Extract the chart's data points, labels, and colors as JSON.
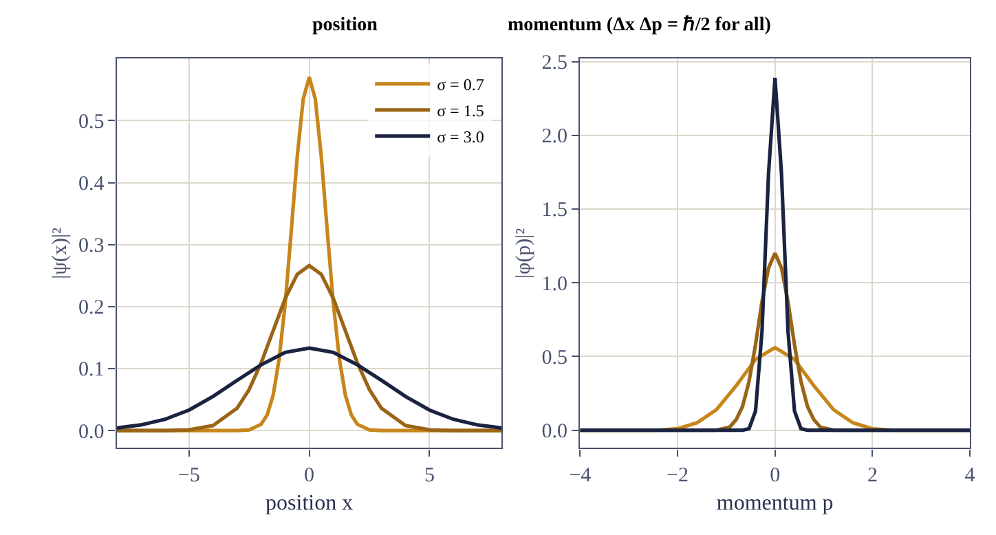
{
  "chart_data": [
    {
      "type": "line",
      "title": "position",
      "xlabel": "position x",
      "ylabel": "|ψ(x)|²",
      "xlim": [
        -8,
        8
      ],
      "ylim": [
        -0.028,
        0.6
      ],
      "xticks": [
        -5,
        0,
        5
      ],
      "yticks": [
        {
          "value": 0,
          "label": "0.0"
        },
        0.1,
        0.2,
        0.3,
        0.4,
        0.5
      ],
      "grid": true,
      "legend": "top right",
      "line_style": "solid",
      "marker": "none",
      "series": [
        {
          "name": "σ = 0.7",
          "color": "#c8861a",
          "x": [
            -8,
            -4,
            -3,
            -2.5,
            -2,
            -1.75,
            -1.5,
            -1.25,
            -1,
            -0.75,
            -0.5,
            -0.25,
            0,
            0.25,
            0.5,
            0.75,
            1,
            1.25,
            1.5,
            1.75,
            2,
            2.5,
            3,
            4,
            8
          ],
          "values": [
            0.0,
            0.0,
            0.0,
            0.001,
            0.01,
            0.025,
            0.057,
            0.116,
            0.205,
            0.321,
            0.442,
            0.535,
            0.57,
            0.535,
            0.442,
            0.321,
            0.205,
            0.116,
            0.057,
            0.025,
            0.01,
            0.001,
            0.0,
            0.0,
            0.0
          ]
        },
        {
          "name": "σ = 1.5",
          "color": "#9a6516",
          "x": [
            -8,
            -7,
            -6,
            -5,
            -4,
            -3,
            -2.5,
            -2,
            -1.5,
            -1,
            -0.5,
            0,
            0.5,
            1,
            1.5,
            2,
            2.5,
            3,
            4,
            5,
            6,
            7,
            8
          ],
          "values": [
            0.0,
            0.0,
            0.0,
            0.001,
            0.008,
            0.036,
            0.066,
            0.109,
            0.161,
            0.213,
            0.252,
            0.266,
            0.252,
            0.213,
            0.161,
            0.109,
            0.066,
            0.036,
            0.008,
            0.001,
            0.0,
            0.0,
            0.0
          ]
        },
        {
          "name": "σ = 3.0",
          "color": "#1a2340",
          "x": [
            -8,
            -7,
            -6,
            -5,
            -4,
            -3,
            -2,
            -1,
            0,
            1,
            2,
            3,
            4,
            5,
            6,
            7,
            8
          ],
          "values": [
            0.004,
            0.009,
            0.018,
            0.033,
            0.055,
            0.081,
            0.106,
            0.126,
            0.133,
            0.126,
            0.106,
            0.081,
            0.055,
            0.033,
            0.018,
            0.009,
            0.004
          ]
        }
      ]
    },
    {
      "type": "line",
      "title": "momentum (Δx Δp = ℏ/2 for all)",
      "xlabel": "momentum p",
      "ylabel": "|φ(p)|²",
      "xlim": [
        -4,
        4
      ],
      "ylim": [
        -0.12,
        2.52
      ],
      "xticks": [
        -4,
        -2,
        0,
        2,
        4
      ],
      "yticks": [
        {
          "value": 0,
          "label": "0.0"
        },
        0.5,
        {
          "value": 1,
          "label": "1.0"
        },
        1.5,
        {
          "value": 2,
          "label": "2.0"
        },
        2.5
      ],
      "grid": true,
      "line_style": "solid",
      "marker": "none",
      "series": [
        {
          "color": "#c8861a",
          "x": [
            -4,
            -2.8,
            -2.4,
            -2.0,
            -1.6,
            -1.2,
            -0.8,
            -0.4,
            0,
            0.4,
            0.8,
            1.2,
            1.6,
            2.0,
            2.4,
            2.8,
            4
          ],
          "values": [
            0.0,
            0.0,
            0.0,
            0.01,
            0.05,
            0.14,
            0.3,
            0.48,
            0.56,
            0.48,
            0.3,
            0.14,
            0.05,
            0.01,
            0.0,
            0.0,
            0.0
          ]
        },
        {
          "color": "#9a6516",
          "x": [
            -4,
            -1.2,
            -1.067,
            -0.933,
            -0.8,
            -0.667,
            -0.533,
            -0.4,
            -0.267,
            -0.133,
            0,
            0.133,
            0.267,
            0.4,
            0.533,
            0.667,
            0.8,
            0.933,
            1.067,
            1.2,
            4
          ],
          "values": [
            0.0,
            0.0,
            0.01,
            0.02,
            0.07,
            0.16,
            0.33,
            0.58,
            0.87,
            1.1,
            1.2,
            1.1,
            0.87,
            0.58,
            0.33,
            0.16,
            0.07,
            0.02,
            0.01,
            0.0,
            0.0
          ]
        },
        {
          "color": "#1a2340",
          "x": [
            -4,
            -0.667,
            -0.533,
            -0.4,
            -0.267,
            -0.133,
            0,
            0.133,
            0.267,
            0.4,
            0.533,
            0.667,
            4
          ],
          "values": [
            0.0,
            0.0,
            0.01,
            0.13,
            0.67,
            1.74,
            2.39,
            1.74,
            0.67,
            0.13,
            0.01,
            0.0,
            0.0
          ]
        }
      ]
    }
  ]
}
